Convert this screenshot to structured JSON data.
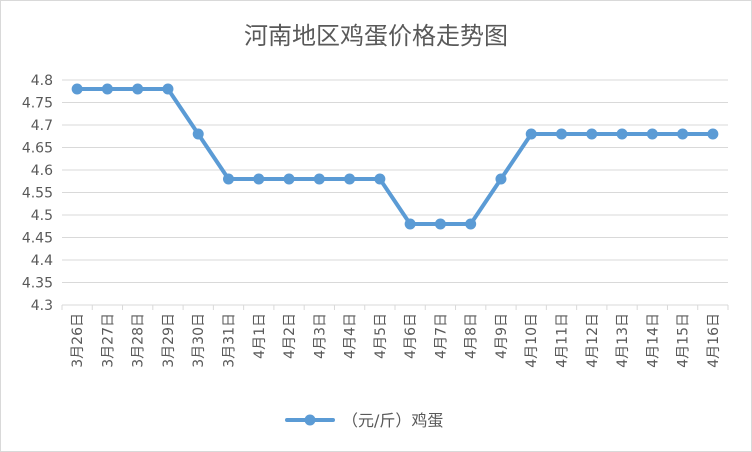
{
  "chart_data": {
    "type": "line",
    "title": "河南地区鸡蛋价格走势图",
    "categories": [
      "3月26日",
      "3月27日",
      "3月28日",
      "3月29日",
      "3月30日",
      "3月31日",
      "4月1日",
      "4月2日",
      "4月3日",
      "4月4日",
      "4月5日",
      "4月6日",
      "4月7日",
      "4月8日",
      "4月9日",
      "4月10日",
      "4月11日",
      "4月12日",
      "4月13日",
      "4月14日",
      "4月15日",
      "4月16日"
    ],
    "series": [
      {
        "name": "（元/斤）鸡蛋",
        "values": [
          4.78,
          4.78,
          4.78,
          4.78,
          4.68,
          4.58,
          4.58,
          4.58,
          4.58,
          4.58,
          4.58,
          4.48,
          4.48,
          4.48,
          4.58,
          4.68,
          4.68,
          4.68,
          4.68,
          4.68,
          4.68,
          4.68
        ]
      }
    ],
    "ylim": [
      4.3,
      4.8
    ],
    "yticks": [
      "4.3",
      "4.35",
      "4.4",
      "4.45",
      "4.5",
      "4.55",
      "4.6",
      "4.65",
      "4.7",
      "4.75",
      "4.8"
    ],
    "grid": true,
    "legend_position": "bottom",
    "colors": {
      "series": "#5b9bd5",
      "grid": "#d9d9d9",
      "text": "#595959"
    }
  }
}
